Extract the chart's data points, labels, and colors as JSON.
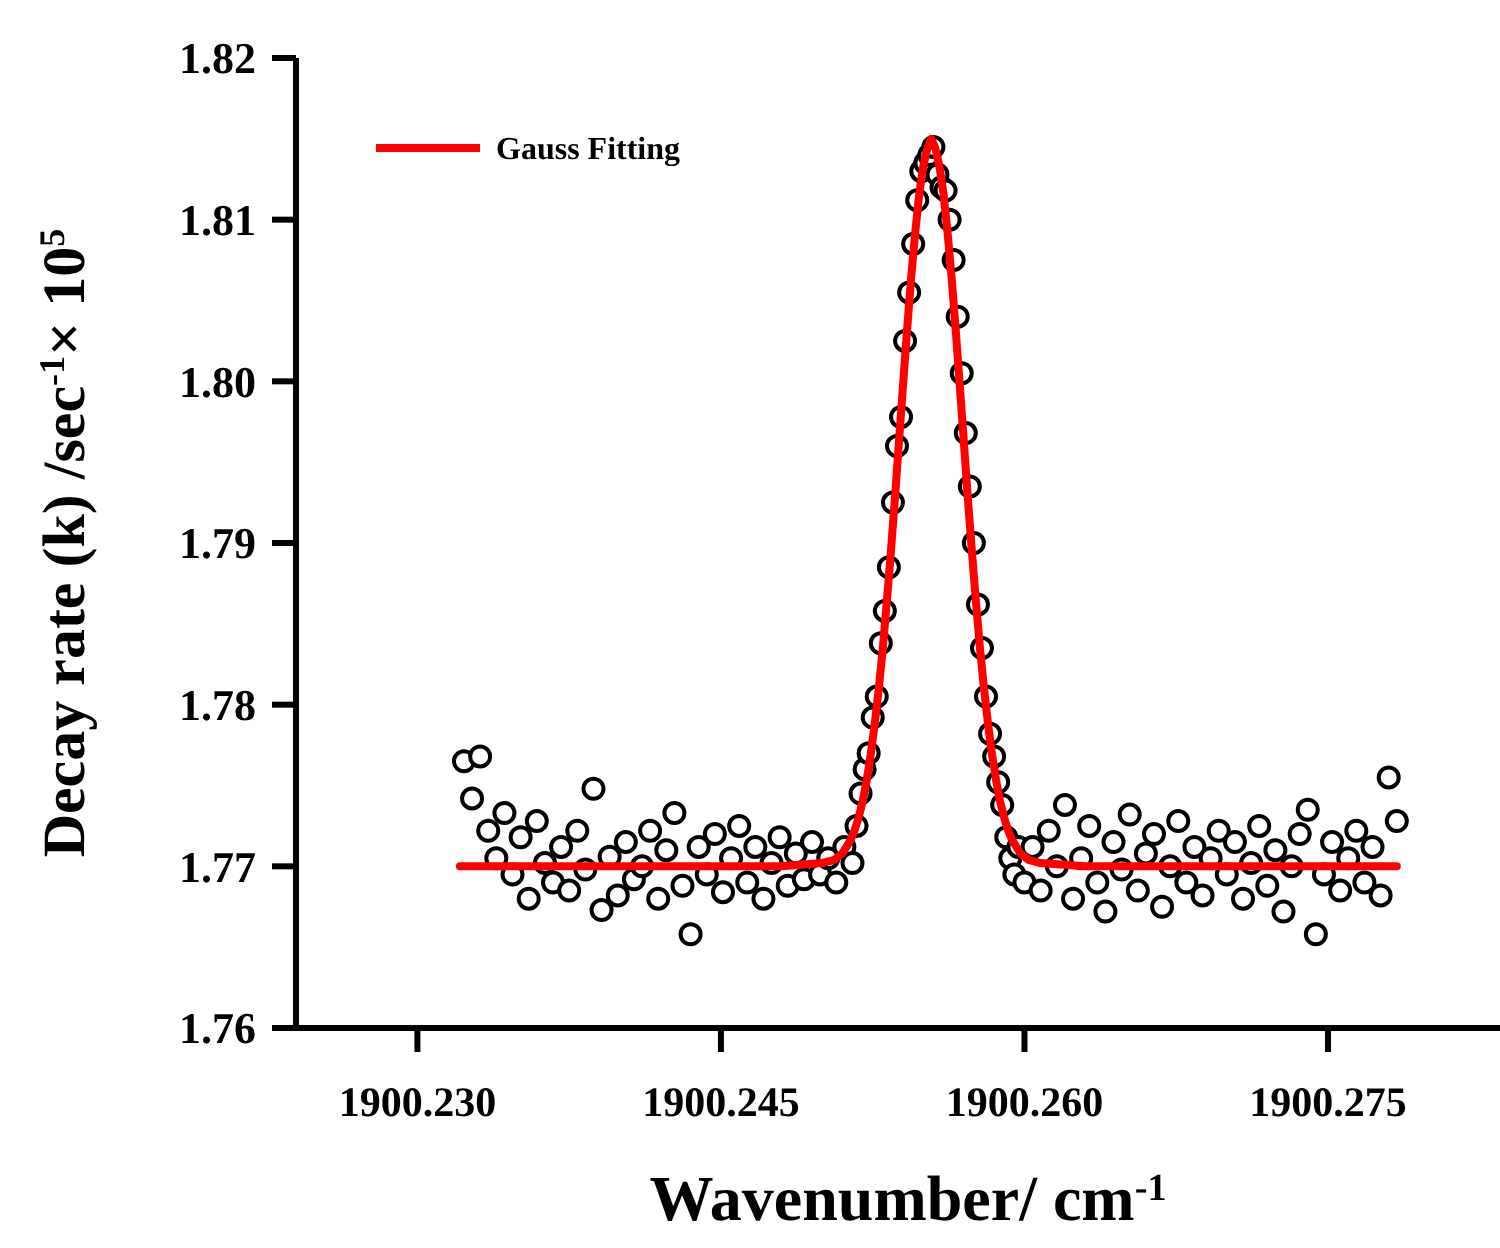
{
  "chart_data": {
    "type": "scatter",
    "xlabel": "Wavenumber/ cm$^{-1}$",
    "ylabel": "Decay rate (k) /sec$^{-1}$× 10$^{5}$",
    "xlim": [
      1900.224,
      1900.2835
    ],
    "xticks": [
      {
        "value": 1900.23,
        "label": "1900.230"
      },
      1900.245,
      {
        "value": 1900.26,
        "label": "1900.260"
      },
      1900.275
    ],
    "ylim": [
      1.76,
      1.82
    ],
    "yticks": [
      {
        "value": 1.76,
        "label": "1.76"
      },
      {
        "value": 1.77,
        "label": "1.77"
      },
      {
        "value": 1.78,
        "label": "1.78"
      },
      {
        "value": 1.79,
        "label": "1.79"
      },
      {
        "value": 1.8,
        "label": "1.80"
      },
      {
        "value": 1.81,
        "label": "1.81"
      },
      {
        "value": 1.82,
        "label": "1.82"
      }
    ],
    "grid": false,
    "legend": "top left",
    "series": [
      {
        "color": "#000000",
        "marker": "circle",
        "x": [
          1900.2323,
          1900.2327,
          1900.2331,
          1900.2335,
          1900.2339,
          1900.2343,
          1900.2347,
          1900.2351,
          1900.2355,
          1900.2359,
          1900.2363,
          1900.2367,
          1900.2371,
          1900.2375,
          1900.2379,
          1900.2383,
          1900.2387,
          1900.2391,
          1900.2395,
          1900.2399,
          1900.2403,
          1900.2407,
          1900.2411,
          1900.2415,
          1900.2419,
          1900.2423,
          1900.2427,
          1900.2431,
          1900.2435,
          1900.2439,
          1900.2443,
          1900.2447,
          1900.2451,
          1900.2455,
          1900.2459,
          1900.2463,
          1900.2467,
          1900.2471,
          1900.2475,
          1900.2479,
          1900.2483,
          1900.2487,
          1900.2491,
          1900.2495,
          1900.2499,
          1900.2503,
          1900.2507,
          1900.2511,
          1900.2515,
          1900.2517,
          1900.2519,
          1900.2521,
          1900.2523,
          1900.2525,
          1900.2527,
          1900.2529,
          1900.2531,
          1900.2533,
          1900.2535,
          1900.2537,
          1900.2539,
          1900.2541,
          1900.2543,
          1900.2545,
          1900.2547,
          1900.2549,
          1900.2551,
          1900.2553,
          1900.2555,
          1900.2557,
          1900.2559,
          1900.2561,
          1900.2563,
          1900.2565,
          1900.2567,
          1900.2569,
          1900.2571,
          1900.2573,
          1900.2575,
          1900.2577,
          1900.2579,
          1900.2581,
          1900.2583,
          1900.2585,
          1900.2587,
          1900.2589,
          1900.2591,
          1900.2593,
          1900.2595,
          1900.2597,
          1900.26,
          1900.2604,
          1900.2608,
          1900.2612,
          1900.2616,
          1900.262,
          1900.2624,
          1900.2628,
          1900.2632,
          1900.2636,
          1900.264,
          1900.2644,
          1900.2648,
          1900.2652,
          1900.2656,
          1900.266,
          1900.2664,
          1900.2668,
          1900.2672,
          1900.2676,
          1900.268,
          1900.2684,
          1900.2688,
          1900.2692,
          1900.2696,
          1900.27,
          1900.2704,
          1900.2708,
          1900.2712,
          1900.2716,
          1900.272,
          1900.2724,
          1900.2728,
          1900.2732,
          1900.2736,
          1900.274,
          1900.2744,
          1900.2748,
          1900.2752,
          1900.2756,
          1900.276,
          1900.2764,
          1900.2768,
          1900.2772,
          1900.2776,
          1900.278,
          1900.2784
        ],
        "values": [
          1.7765,
          1.7742,
          1.7768,
          1.7722,
          1.7705,
          1.7733,
          1.7695,
          1.7718,
          1.768,
          1.7728,
          1.7702,
          1.769,
          1.7712,
          1.7685,
          1.7722,
          1.7698,
          1.7748,
          1.7673,
          1.7706,
          1.7682,
          1.7715,
          1.7692,
          1.77,
          1.7722,
          1.768,
          1.771,
          1.7733,
          1.7688,
          1.7658,
          1.7712,
          1.7695,
          1.772,
          1.7684,
          1.7705,
          1.7725,
          1.769,
          1.7712,
          1.768,
          1.7702,
          1.7718,
          1.7688,
          1.7708,
          1.7692,
          1.7715,
          1.7695,
          1.7705,
          1.769,
          1.7712,
          1.7702,
          1.7725,
          1.7745,
          1.776,
          1.777,
          1.7792,
          1.7805,
          1.7838,
          1.7858,
          1.7885,
          1.7925,
          1.796,
          1.7978,
          1.8025,
          1.8055,
          1.8085,
          1.8112,
          1.813,
          1.8135,
          1.814,
          1.8145,
          1.8128,
          1.812,
          1.8118,
          1.81,
          1.8075,
          1.804,
          1.8005,
          1.7968,
          1.7935,
          1.79,
          1.7862,
          1.7835,
          1.7805,
          1.7782,
          1.7768,
          1.7752,
          1.7738,
          1.7718,
          1.7705,
          1.7695,
          1.7712,
          1.769,
          1.7712,
          1.7685,
          1.7722,
          1.77,
          1.7738,
          1.768,
          1.7705,
          1.7725,
          1.769,
          1.7672,
          1.7715,
          1.7698,
          1.7732,
          1.7685,
          1.7708,
          1.772,
          1.7675,
          1.77,
          1.7728,
          1.769,
          1.7712,
          1.7682,
          1.7705,
          1.7722,
          1.7695,
          1.7715,
          1.768,
          1.7702,
          1.7725,
          1.7688,
          1.771,
          1.7672,
          1.77,
          1.772,
          1.7735,
          1.7658,
          1.7695,
          1.7715,
          1.7685,
          1.7705,
          1.7722,
          1.769,
          1.7712,
          1.7682,
          1.7755,
          1.7728
        ]
      },
      {
        "type": "line",
        "name": "Gauss Fitting",
        "color": "#ff0000",
        "marker": "none",
        "line_style": "solid",
        "x": [
          1900.2321,
          1900.248,
          1900.25,
          1900.2506,
          1900.251,
          1900.2514,
          1900.2516,
          1900.2518,
          1900.252,
          1900.2522,
          1900.2524,
          1900.2526,
          1900.2528,
          1900.253,
          1900.2532,
          1900.2534,
          1900.2536,
          1900.2538,
          1900.254,
          1900.2542,
          1900.2544,
          1900.2546,
          1900.2548,
          1900.255,
          1900.2552,
          1900.2554,
          1900.2556,
          1900.2558,
          1900.256,
          1900.2562,
          1900.2564,
          1900.2566,
          1900.2568,
          1900.257,
          1900.2572,
          1900.2574,
          1900.2576,
          1900.2578,
          1900.258,
          1900.2582,
          1900.2584,
          1900.2586,
          1900.2588,
          1900.259,
          1900.2592,
          1900.2594,
          1900.2598,
          1900.2602,
          1900.2608,
          1900.263,
          1900.2784
        ],
        "values": [
          1.77,
          1.77,
          1.7702,
          1.7704,
          1.7708,
          1.7716,
          1.7722,
          1.773,
          1.774,
          1.7753,
          1.7769,
          1.7788,
          1.781,
          1.7835,
          1.7864,
          1.7895,
          1.7928,
          1.7963,
          1.7998,
          1.8032,
          1.8064,
          1.8092,
          1.8116,
          1.8133,
          1.8144,
          1.815,
          1.8144,
          1.8133,
          1.8116,
          1.8092,
          1.8064,
          1.8032,
          1.7998,
          1.7963,
          1.7928,
          1.7895,
          1.7864,
          1.7835,
          1.781,
          1.7788,
          1.7769,
          1.7753,
          1.774,
          1.773,
          1.7722,
          1.7716,
          1.7708,
          1.7704,
          1.7702,
          1.77,
          1.77
        ]
      }
    ]
  }
}
